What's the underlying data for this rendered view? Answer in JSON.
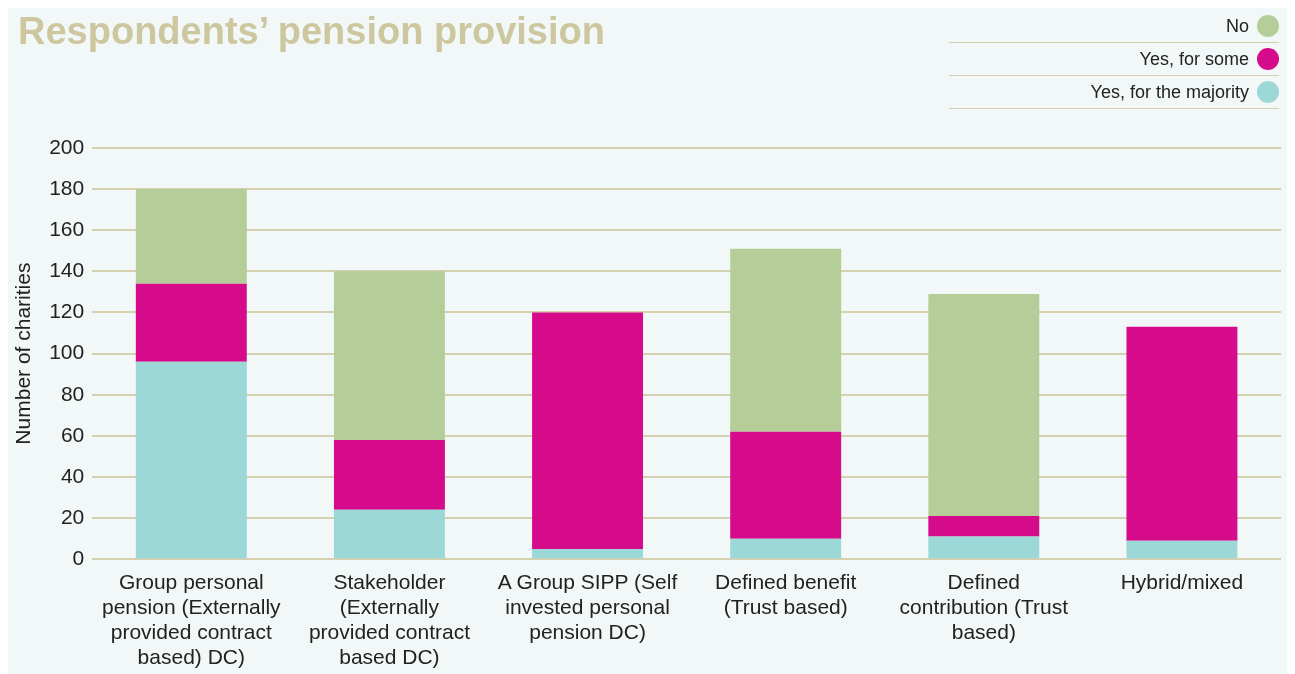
{
  "chart_data": {
    "type": "bar",
    "title": "Respondents’ pension provision",
    "ylabel": "Number of charities",
    "categories": [
      "Group personal pension (Externally provided contract based) DC)",
      "Stakeholder (Externally provided contract based DC)",
      "A Group SIPP (Self invested personal pension DC)",
      "Defined benefit (Trust based)",
      "Defined contribution (Trust based)",
      "Hybrid/mixed"
    ],
    "stacked": true,
    "ylim": [
      0,
      200
    ],
    "yticks": [
      0,
      20,
      40,
      60,
      80,
      100,
      120,
      140,
      160,
      180,
      200
    ],
    "grid": "y",
    "legend": "top right",
    "series": [
      {
        "name": "Yes, for the majority",
        "color": "#9cd8d8",
        "values": [
          96,
          24,
          5,
          10,
          11,
          9
        ]
      },
      {
        "name": "Yes, for some",
        "color": "#d60b8c",
        "values": [
          38,
          34,
          115,
          52,
          10,
          104
        ]
      },
      {
        "name": "No",
        "color": "#b5cd98",
        "values": [
          46,
          82,
          0,
          89,
          108,
          0
        ]
      }
    ]
  }
}
